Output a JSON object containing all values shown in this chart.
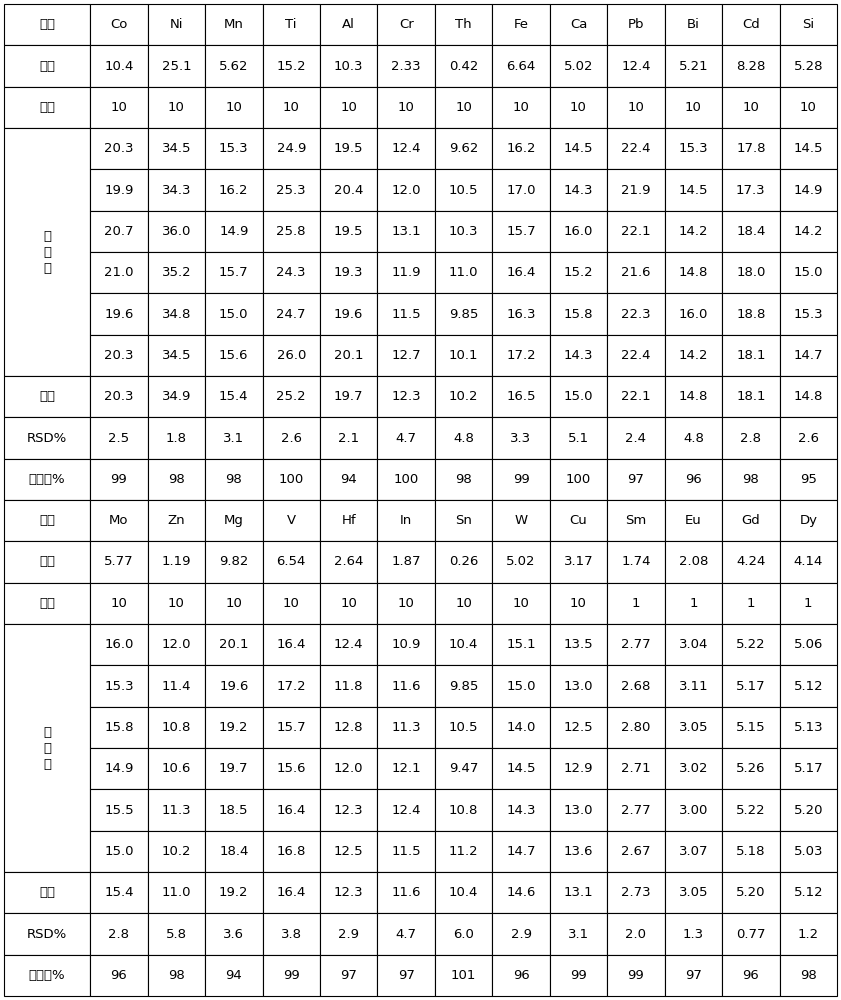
{
  "table1": {
    "headers": [
      "元素",
      "Co",
      "Ni",
      "Mn",
      "Ti",
      "Al",
      "Cr",
      "Th",
      "Fe",
      "Ca",
      "Pb",
      "Bi",
      "Cd",
      "Si"
    ],
    "bendi": [
      "本底",
      "10.4",
      "25.1",
      "5.62",
      "15.2",
      "10.3",
      "2.33",
      "0.42",
      "6.64",
      "5.02",
      "12.4",
      "5.21",
      "8.28",
      "5.28"
    ],
    "jiaru": [
      "加入",
      "10",
      "10",
      "10",
      "10",
      "10",
      "10",
      "10",
      "10",
      "10",
      "10",
      "10",
      "10",
      "10"
    ],
    "measurement_rows": [
      [
        "20.3",
        "34.5",
        "15.3",
        "24.9",
        "19.5",
        "12.4",
        "9.62",
        "16.2",
        "14.5",
        "22.4",
        "15.3",
        "17.8",
        "14.5"
      ],
      [
        "19.9",
        "34.3",
        "16.2",
        "25.3",
        "20.4",
        "12.0",
        "10.5",
        "17.0",
        "14.3",
        "21.9",
        "14.5",
        "17.3",
        "14.9"
      ],
      [
        "20.7",
        "36.0",
        "14.9",
        "25.8",
        "19.5",
        "13.1",
        "10.3",
        "15.7",
        "16.0",
        "22.1",
        "14.2",
        "18.4",
        "14.2"
      ],
      [
        "21.0",
        "35.2",
        "15.7",
        "24.3",
        "19.3",
        "11.9",
        "11.0",
        "16.4",
        "15.2",
        "21.6",
        "14.8",
        "18.0",
        "15.0"
      ],
      [
        "19.6",
        "34.8",
        "15.0",
        "24.7",
        "19.6",
        "11.5",
        "9.85",
        "16.3",
        "15.8",
        "22.3",
        "16.0",
        "18.8",
        "15.3"
      ],
      [
        "20.3",
        "34.5",
        "15.6",
        "26.0",
        "20.1",
        "12.7",
        "10.1",
        "17.2",
        "14.3",
        "22.4",
        "14.2",
        "18.1",
        "14.7"
      ]
    ],
    "pingjun": [
      "平均",
      "20.3",
      "34.9",
      "15.4",
      "25.2",
      "19.7",
      "12.3",
      "10.2",
      "16.5",
      "15.0",
      "22.1",
      "14.8",
      "18.1",
      "14.8"
    ],
    "rsd": [
      "RSD%",
      "2.5",
      "1.8",
      "3.1",
      "2.6",
      "2.1",
      "4.7",
      "4.8",
      "3.3",
      "5.1",
      "2.4",
      "4.8",
      "2.8",
      "2.6"
    ],
    "huishou": [
      "回收率%",
      "99",
      "98",
      "98",
      "100",
      "94",
      "100",
      "98",
      "99",
      "100",
      "97",
      "96",
      "98",
      "95"
    ]
  },
  "table2": {
    "headers": [
      "元素",
      "Mo",
      "Zn",
      "Mg",
      "V",
      "Hf",
      "In",
      "Sn",
      "W",
      "Cu",
      "Sm",
      "Eu",
      "Gd",
      "Dy"
    ],
    "bendi": [
      "本底",
      "5.77",
      "1.19",
      "9.82",
      "6.54",
      "2.64",
      "1.87",
      "0.26",
      "5.02",
      "3.17",
      "1.74",
      "2.08",
      "4.24",
      "4.14"
    ],
    "jiaru": [
      "加入",
      "10",
      "10",
      "10",
      "10",
      "10",
      "10",
      "10",
      "10",
      "10",
      "1",
      "1",
      "1",
      "1"
    ],
    "measurement_rows": [
      [
        "16.0",
        "12.0",
        "20.1",
        "16.4",
        "12.4",
        "10.9",
        "10.4",
        "15.1",
        "13.5",
        "2.77",
        "3.04",
        "5.22",
        "5.06"
      ],
      [
        "15.3",
        "11.4",
        "19.6",
        "17.2",
        "11.8",
        "11.6",
        "9.85",
        "15.0",
        "13.0",
        "2.68",
        "3.11",
        "5.17",
        "5.12"
      ],
      [
        "15.8",
        "10.8",
        "19.2",
        "15.7",
        "12.8",
        "11.3",
        "10.5",
        "14.0",
        "12.5",
        "2.80",
        "3.05",
        "5.15",
        "5.13"
      ],
      [
        "14.9",
        "10.6",
        "19.7",
        "15.6",
        "12.0",
        "12.1",
        "9.47",
        "14.5",
        "12.9",
        "2.71",
        "3.02",
        "5.26",
        "5.17"
      ],
      [
        "15.5",
        "11.3",
        "18.5",
        "16.4",
        "12.3",
        "12.4",
        "10.8",
        "14.3",
        "13.0",
        "2.77",
        "3.00",
        "5.22",
        "5.20"
      ],
      [
        "15.0",
        "10.2",
        "18.4",
        "16.8",
        "12.5",
        "11.5",
        "11.2",
        "14.7",
        "13.6",
        "2.67",
        "3.07",
        "5.18",
        "5.03"
      ]
    ],
    "pingjun": [
      "平均",
      "15.4",
      "11.0",
      "19.2",
      "16.4",
      "12.3",
      "11.6",
      "10.4",
      "14.6",
      "13.1",
      "2.73",
      "3.05",
      "5.20",
      "5.12"
    ],
    "rsd": [
      "RSD%",
      "2.8",
      "5.8",
      "3.6",
      "3.8",
      "2.9",
      "4.7",
      "6.0",
      "2.9",
      "3.1",
      "2.0",
      "1.3",
      "0.77",
      "1.2"
    ],
    "huishou": [
      "回收率%",
      "96",
      "98",
      "94",
      "99",
      "97",
      "97",
      "101",
      "96",
      "99",
      "99",
      "97",
      "96",
      "98"
    ]
  },
  "meas_label": "测\n量\n值",
  "bg_color": "#ffffff",
  "border_color": "#000000",
  "text_color": "#000000",
  "font_size": 9.5,
  "lw": 0.8
}
